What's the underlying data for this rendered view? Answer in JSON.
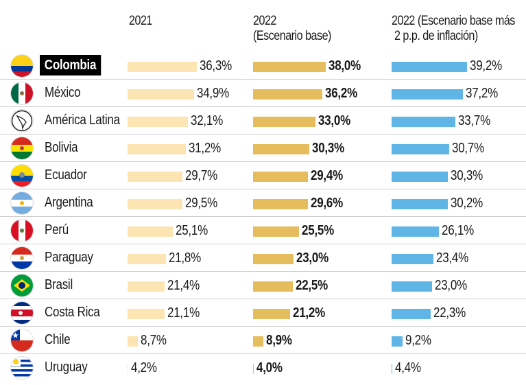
{
  "chart_data": {
    "type": "bar",
    "orientation": "horizontal",
    "title": "",
    "xlabel": "",
    "ylabel": "",
    "grid": false,
    "legend": "none",
    "scale_baseline": 4,
    "categories": [
      "Colombia",
      "México",
      "América Latina",
      "Bolivia",
      "Ecuador",
      "Argentina",
      "Perú",
      "Paraguay",
      "Brasil",
      "Costa Rica",
      "Chile",
      "Uruguay"
    ],
    "series": [
      {
        "name": "2021",
        "color": "#fde5b3",
        "bold_labels": false,
        "values": [
          36.3,
          34.9,
          32.1,
          31.2,
          29.7,
          29.5,
          25.1,
          21.8,
          21.4,
          21.1,
          8.7,
          4.2
        ],
        "labels": [
          "36,3%",
          "34,9%",
          "32,1%",
          "31,2%",
          "29,7%",
          "29,5%",
          "25,1%",
          "21,8%",
          "21,4%",
          "21,1%",
          "8,7%",
          "4,2%"
        ]
      },
      {
        "name": "2022\n(Escenario base)",
        "color": "#e6bd5c",
        "bold_labels": true,
        "values": [
          38.0,
          36.2,
          33.0,
          30.3,
          29.4,
          29.6,
          25.5,
          23.0,
          22.5,
          21.2,
          8.9,
          4.0
        ],
        "labels": [
          "38,0%",
          "36,2%",
          "33,0%",
          "30,3%",
          "29,4%",
          "29,6%",
          "25,5%",
          "23,0%",
          "22,5%",
          "21,2%",
          "8,9%",
          "4,0%"
        ]
      },
      {
        "name": "2022 (Escenario base más\n 2 p.p. de inflación)",
        "color": "#5fb6e6",
        "bold_labels": false,
        "values": [
          39.2,
          37.2,
          33.7,
          30.7,
          30.3,
          30.2,
          26.1,
          23.4,
          23.0,
          22.3,
          9.2,
          4.4
        ],
        "labels": [
          "39,2%",
          "37,2%",
          "33,7%",
          "30,7%",
          "30,3%",
          "30,2%",
          "26,1%",
          "23,4%",
          "23,0%",
          "22,3%",
          "9,2%",
          "4,4%"
        ]
      }
    ],
    "highlighted_category": "Colombia"
  },
  "headers": {
    "col1": "2021",
    "col2": "2022\n(Escenario base)",
    "col3": "2022 (Escenario base más\n 2 p.p. de inflación)"
  },
  "flags": [
    "colombia-flag-icon",
    "mexico-flag-icon",
    "latin-america-map-icon",
    "bolivia-flag-icon",
    "ecuador-flag-icon",
    "argentina-flag-icon",
    "peru-flag-icon",
    "paraguay-flag-icon",
    "brazil-flag-icon",
    "costa-rica-flag-icon",
    "chile-flag-icon",
    "uruguay-flag-icon"
  ]
}
